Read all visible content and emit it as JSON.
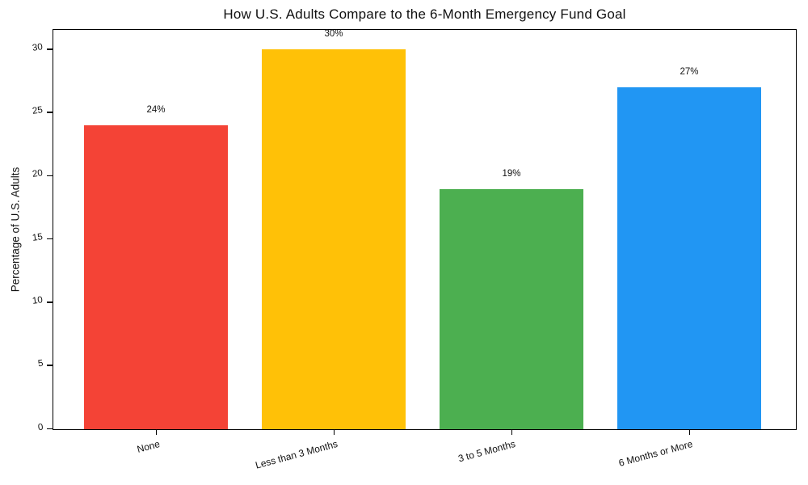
{
  "chart_data": {
    "type": "bar",
    "title": "How U.S. Adults Compare to the 6-Month Emergency Fund Goal",
    "xlabel": "",
    "ylabel": "Percentage of U.S. Adults",
    "categories": [
      "None",
      "Less than 3 Months",
      "3 to 5 Months",
      "6 Months or More"
    ],
    "values": [
      24,
      30,
      19,
      27
    ],
    "value_labels": [
      "24%",
      "30%",
      "19%",
      "27%"
    ],
    "bar_colors": [
      "#f44336",
      "#ffc107",
      "#4caf50",
      "#2196f3"
    ],
    "yticks": [
      0,
      5,
      10,
      15,
      20,
      25,
      30
    ],
    "ytick_labels": [
      "0",
      "5",
      "10",
      "15",
      "20",
      "25",
      "30"
    ],
    "ylim": [
      0,
      31.5
    ],
    "grid": false,
    "legend": null,
    "background_color": "#ffffff",
    "axis_color": "#000000",
    "text_color": "#111111"
  }
}
